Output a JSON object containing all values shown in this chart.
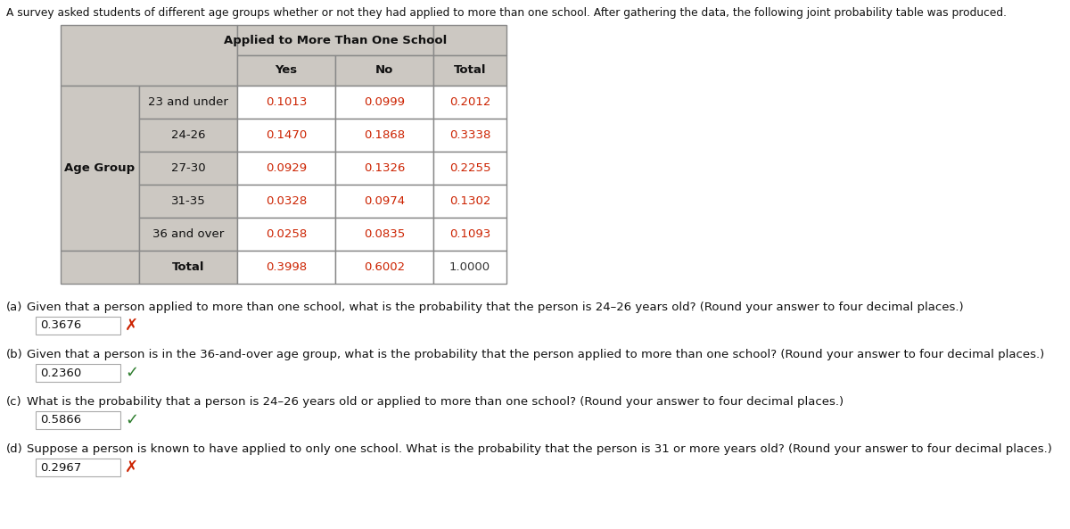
{
  "intro_text": "A survey asked students of different age groups whether or not they had applied to more than one school. After gathering the data, the following joint probability table was produced.",
  "table_header_merged": "Applied to More Than One School",
  "col_headers": [
    "Yes",
    "No",
    "Total"
  ],
  "row_label_main": "Age Group",
  "row_labels": [
    "23 and under",
    "24-26",
    "27-30",
    "31-35",
    "36 and over",
    "Total"
  ],
  "table_data": [
    [
      "0.1013",
      "0.0999",
      "0.2012"
    ],
    [
      "0.1470",
      "0.1868",
      "0.3338"
    ],
    [
      "0.0929",
      "0.1326",
      "0.2255"
    ],
    [
      "0.0328",
      "0.0974",
      "0.1302"
    ],
    [
      "0.0258",
      "0.0835",
      "0.1093"
    ],
    [
      "0.3998",
      "0.6002",
      "1.0000"
    ]
  ],
  "data_color": "#cc2200",
  "total_last_color": "#333333",
  "header_bg": "#ccc8c2",
  "cell_bg": "#ffffff",
  "border_color": "#888888",
  "questions": [
    {
      "label": "(a)",
      "text": "Given that a person applied to more than one school, what is the probability that the person is 24–26 years old? (Round your answer to four decimal places.)",
      "answer": "0.3676",
      "correct": false
    },
    {
      "label": "(b)",
      "text": "Given that a person is in the 36-and-over age group, what is the probability that the person applied to more than one school? (Round your answer to four decimal places.)",
      "answer": "0.2360",
      "correct": true
    },
    {
      "label": "(c)",
      "text": "What is the probability that a person is 24–26 years old or applied to more than one school? (Round your answer to four decimal places.)",
      "answer": "0.5866",
      "correct": true
    },
    {
      "label": "(d)",
      "text": "Suppose a person is known to have applied to only one school. What is the probability that the person is 31 or more years old? (Round your answer to four decimal places.)",
      "answer": "0.2967",
      "correct": false
    }
  ],
  "fig_width": 12.0,
  "fig_height": 5.93
}
